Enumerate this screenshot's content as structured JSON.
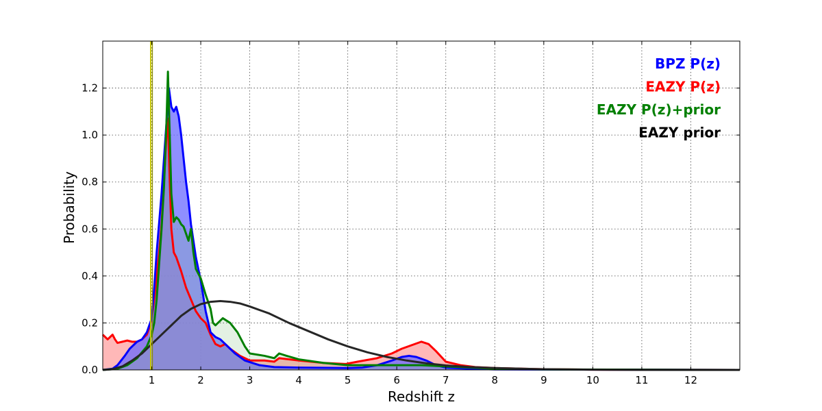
{
  "chart_data": {
    "type": "line",
    "title": "",
    "xlabel": "Redshift z",
    "ylabel": "Probability",
    "xlim": [
      0,
      13
    ],
    "ylim": [
      0,
      1.4
    ],
    "x_ticks": [
      "1",
      "2",
      "3",
      "4",
      "5",
      "6",
      "7",
      "8",
      "9",
      "10",
      "11",
      "12"
    ],
    "y_ticks": [
      "0.0",
      "0.2",
      "0.4",
      "0.6",
      "0.8",
      "1.0",
      "1.2"
    ],
    "grid": true,
    "legend_position": "top-right",
    "vertical_marker": {
      "x": 1.0,
      "color": "#c8c800"
    },
    "series": [
      {
        "name": "EAZY P(z)",
        "color": "#ff0000",
        "fill": "#ff9a9a",
        "fill_opacity": 0.7,
        "points": [
          [
            0,
            0.15
          ],
          [
            0.05,
            0.14
          ],
          [
            0.1,
            0.13
          ],
          [
            0.15,
            0.14
          ],
          [
            0.2,
            0.15
          ],
          [
            0.25,
            0.13
          ],
          [
            0.3,
            0.115
          ],
          [
            0.4,
            0.12
          ],
          [
            0.5,
            0.125
          ],
          [
            0.6,
            0.12
          ],
          [
            0.7,
            0.12
          ],
          [
            0.8,
            0.13
          ],
          [
            0.9,
            0.15
          ],
          [
            0.95,
            0.18
          ],
          [
            1.0,
            0.22
          ],
          [
            1.05,
            0.3
          ],
          [
            1.1,
            0.4
          ],
          [
            1.15,
            0.5
          ],
          [
            1.2,
            0.62
          ],
          [
            1.25,
            0.8
          ],
          [
            1.3,
            1.0
          ],
          [
            1.33,
            1.07
          ],
          [
            1.36,
            0.85
          ],
          [
            1.4,
            0.6
          ],
          [
            1.45,
            0.5
          ],
          [
            1.5,
            0.48
          ],
          [
            1.6,
            0.42
          ],
          [
            1.7,
            0.35
          ],
          [
            1.8,
            0.3
          ],
          [
            1.9,
            0.25
          ],
          [
            2.0,
            0.22
          ],
          [
            2.1,
            0.2
          ],
          [
            2.2,
            0.15
          ],
          [
            2.3,
            0.11
          ],
          [
            2.4,
            0.1
          ],
          [
            2.5,
            0.11
          ],
          [
            2.6,
            0.09
          ],
          [
            2.8,
            0.06
          ],
          [
            3.0,
            0.04
          ],
          [
            3.3,
            0.04
          ],
          [
            3.5,
            0.035
          ],
          [
            3.6,
            0.05
          ],
          [
            4.0,
            0.04
          ],
          [
            4.5,
            0.03
          ],
          [
            4.95,
            0.025
          ],
          [
            5.2,
            0.035
          ],
          [
            5.6,
            0.05
          ],
          [
            5.9,
            0.07
          ],
          [
            6.1,
            0.09
          ],
          [
            6.3,
            0.105
          ],
          [
            6.5,
            0.12
          ],
          [
            6.65,
            0.11
          ],
          [
            6.8,
            0.08
          ],
          [
            7.0,
            0.035
          ],
          [
            7.3,
            0.02
          ],
          [
            7.6,
            0.012
          ],
          [
            8.0,
            0.008
          ],
          [
            9.0,
            0.003
          ],
          [
            10.0,
            0.001
          ],
          [
            13.0,
            0.0
          ]
        ]
      },
      {
        "name": "BPZ P(z)",
        "color": "#0000ff",
        "fill": "#6a6aff",
        "fill_opacity": 0.75,
        "points": [
          [
            0,
            0.0
          ],
          [
            0.2,
            0.005
          ],
          [
            0.3,
            0.02
          ],
          [
            0.45,
            0.06
          ],
          [
            0.55,
            0.09
          ],
          [
            0.7,
            0.12
          ],
          [
            0.8,
            0.13
          ],
          [
            0.9,
            0.16
          ],
          [
            1.0,
            0.22
          ],
          [
            1.05,
            0.35
          ],
          [
            1.1,
            0.5
          ],
          [
            1.2,
            0.75
          ],
          [
            1.25,
            0.9
          ],
          [
            1.3,
            1.05
          ],
          [
            1.35,
            1.2
          ],
          [
            1.4,
            1.12
          ],
          [
            1.45,
            1.1
          ],
          [
            1.5,
            1.12
          ],
          [
            1.55,
            1.08
          ],
          [
            1.6,
            1.0
          ],
          [
            1.65,
            0.9
          ],
          [
            1.7,
            0.8
          ],
          [
            1.75,
            0.72
          ],
          [
            1.8,
            0.62
          ],
          [
            1.85,
            0.55
          ],
          [
            1.9,
            0.48
          ],
          [
            2.0,
            0.38
          ],
          [
            2.1,
            0.25
          ],
          [
            2.2,
            0.16
          ],
          [
            2.3,
            0.14
          ],
          [
            2.4,
            0.13
          ],
          [
            2.5,
            0.11
          ],
          [
            2.7,
            0.07
          ],
          [
            2.9,
            0.04
          ],
          [
            3.2,
            0.02
          ],
          [
            3.5,
            0.012
          ],
          [
            4.0,
            0.01
          ],
          [
            5.0,
            0.008
          ],
          [
            5.3,
            0.01
          ],
          [
            5.6,
            0.02
          ],
          [
            5.9,
            0.04
          ],
          [
            6.1,
            0.055
          ],
          [
            6.25,
            0.06
          ],
          [
            6.4,
            0.055
          ],
          [
            6.6,
            0.04
          ],
          [
            6.8,
            0.02
          ],
          [
            7.0,
            0.01
          ],
          [
            7.5,
            0.005
          ],
          [
            8.0,
            0.002
          ],
          [
            13.0,
            0.0
          ]
        ]
      },
      {
        "name": "EAZY P(z)+prior",
        "color": "#007f00",
        "fill": "#7fc07f",
        "fill_opacity": 0.22,
        "points": [
          [
            0,
            0.0
          ],
          [
            0.3,
            0.005
          ],
          [
            0.5,
            0.02
          ],
          [
            0.7,
            0.05
          ],
          [
            0.9,
            0.1
          ],
          [
            1.0,
            0.15
          ],
          [
            1.05,
            0.2
          ],
          [
            1.1,
            0.3
          ],
          [
            1.15,
            0.45
          ],
          [
            1.2,
            0.6
          ],
          [
            1.25,
            0.78
          ],
          [
            1.3,
            1.05
          ],
          [
            1.33,
            1.27
          ],
          [
            1.36,
            1.05
          ],
          [
            1.4,
            0.75
          ],
          [
            1.45,
            0.63
          ],
          [
            1.5,
            0.65
          ],
          [
            1.55,
            0.64
          ],
          [
            1.6,
            0.62
          ],
          [
            1.65,
            0.61
          ],
          [
            1.7,
            0.58
          ],
          [
            1.75,
            0.55
          ],
          [
            1.8,
            0.6
          ],
          [
            1.85,
            0.5
          ],
          [
            1.9,
            0.43
          ],
          [
            2.0,
            0.39
          ],
          [
            2.1,
            0.32
          ],
          [
            2.2,
            0.26
          ],
          [
            2.25,
            0.2
          ],
          [
            2.3,
            0.19
          ],
          [
            2.35,
            0.2
          ],
          [
            2.45,
            0.22
          ],
          [
            2.6,
            0.2
          ],
          [
            2.75,
            0.16
          ],
          [
            2.9,
            0.1
          ],
          [
            3.0,
            0.07
          ],
          [
            3.3,
            0.06
          ],
          [
            3.5,
            0.05
          ],
          [
            3.6,
            0.07
          ],
          [
            3.75,
            0.06
          ],
          [
            4.0,
            0.045
          ],
          [
            4.5,
            0.03
          ],
          [
            5.0,
            0.02
          ],
          [
            5.5,
            0.02
          ],
          [
            6.0,
            0.02
          ],
          [
            6.5,
            0.02
          ],
          [
            7.0,
            0.015
          ],
          [
            7.5,
            0.01
          ],
          [
            8.0,
            0.005
          ],
          [
            9.0,
            0.002
          ],
          [
            13.0,
            0.0
          ]
        ]
      },
      {
        "name": "EAZY prior",
        "color": "#262626",
        "fill": "",
        "fill_opacity": 0,
        "points": [
          [
            0,
            0.0
          ],
          [
            0.2,
            0.003
          ],
          [
            0.4,
            0.015
          ],
          [
            0.6,
            0.04
          ],
          [
            0.8,
            0.07
          ],
          [
            1.0,
            0.11
          ],
          [
            1.2,
            0.15
          ],
          [
            1.4,
            0.19
          ],
          [
            1.6,
            0.23
          ],
          [
            1.8,
            0.26
          ],
          [
            2.0,
            0.28
          ],
          [
            2.2,
            0.29
          ],
          [
            2.4,
            0.293
          ],
          [
            2.6,
            0.29
          ],
          [
            2.8,
            0.283
          ],
          [
            3.0,
            0.27
          ],
          [
            3.4,
            0.24
          ],
          [
            3.8,
            0.2
          ],
          [
            4.2,
            0.165
          ],
          [
            4.6,
            0.13
          ],
          [
            5.0,
            0.1
          ],
          [
            5.4,
            0.075
          ],
          [
            5.8,
            0.055
          ],
          [
            6.2,
            0.04
          ],
          [
            6.6,
            0.028
          ],
          [
            7.0,
            0.019
          ],
          [
            7.5,
            0.012
          ],
          [
            8.0,
            0.008
          ],
          [
            9.0,
            0.003
          ],
          [
            10.0,
            0.001
          ],
          [
            11.0,
            0.0003
          ],
          [
            13.0,
            0.0
          ]
        ]
      }
    ],
    "legend": [
      {
        "label": "BPZ P(z)",
        "color": "#0000ff"
      },
      {
        "label": "EAZY P(z)",
        "color": "#ff0000"
      },
      {
        "label": "EAZY P(z)+prior",
        "color": "#007f00"
      },
      {
        "label": "EAZY prior",
        "color": "#000000"
      }
    ]
  }
}
